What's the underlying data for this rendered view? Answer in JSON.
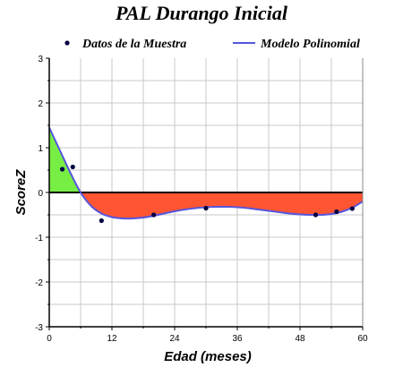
{
  "chart_data": {
    "type": "line",
    "title": "PAL Durango Inicial",
    "xlabel": "Edad (meses)",
    "ylabel": "ScoreZ",
    "xlim": [
      0,
      60
    ],
    "ylim": [
      -3,
      3
    ],
    "x_ticks": [
      "0",
      "12",
      "24",
      "36",
      "48",
      "60"
    ],
    "y_ticks": [
      "-3",
      "-2",
      "-1",
      "0",
      "1",
      "2",
      "3"
    ],
    "grid": true,
    "legend_position": "top",
    "series": [
      {
        "name": "Datos de la Muestra",
        "kind": "scatter",
        "color": "#000044",
        "points": [
          {
            "x": 2.5,
            "y": 0.52
          },
          {
            "x": 4.5,
            "y": 0.57
          },
          {
            "x": 10,
            "y": -0.63
          },
          {
            "x": 20,
            "y": -0.5
          },
          {
            "x": 30,
            "y": -0.35
          },
          {
            "x": 51,
            "y": -0.5
          },
          {
            "x": 55,
            "y": -0.43
          },
          {
            "x": 58,
            "y": -0.36
          }
        ]
      },
      {
        "name": "Modelo Polinomial",
        "kind": "line",
        "color": "#5555dd",
        "points": [
          {
            "x": 0,
            "y": 1.45
          },
          {
            "x": 2,
            "y": 0.95
          },
          {
            "x": 4,
            "y": 0.45
          },
          {
            "x": 6,
            "y": 0.0
          },
          {
            "x": 8,
            "y": -0.3
          },
          {
            "x": 10,
            "y": -0.47
          },
          {
            "x": 12,
            "y": -0.55
          },
          {
            "x": 14,
            "y": -0.58
          },
          {
            "x": 16,
            "y": -0.58
          },
          {
            "x": 18,
            "y": -0.56
          },
          {
            "x": 20,
            "y": -0.52
          },
          {
            "x": 22,
            "y": -0.47
          },
          {
            "x": 24,
            "y": -0.42
          },
          {
            "x": 26,
            "y": -0.38
          },
          {
            "x": 28,
            "y": -0.35
          },
          {
            "x": 30,
            "y": -0.33
          },
          {
            "x": 32,
            "y": -0.32
          },
          {
            "x": 34,
            "y": -0.32
          },
          {
            "x": 36,
            "y": -0.33
          },
          {
            "x": 38,
            "y": -0.35
          },
          {
            "x": 40,
            "y": -0.38
          },
          {
            "x": 42,
            "y": -0.41
          },
          {
            "x": 44,
            "y": -0.44
          },
          {
            "x": 46,
            "y": -0.47
          },
          {
            "x": 48,
            "y": -0.49
          },
          {
            "x": 50,
            "y": -0.5
          },
          {
            "x": 52,
            "y": -0.5
          },
          {
            "x": 54,
            "y": -0.48
          },
          {
            "x": 56,
            "y": -0.43
          },
          {
            "x": 58,
            "y": -0.34
          },
          {
            "x": 60,
            "y": -0.2
          }
        ]
      }
    ],
    "fill_colors": {
      "above_zero": "#77ee44",
      "below_zero": "#ff5533"
    },
    "zero_line_color": "#000000"
  }
}
